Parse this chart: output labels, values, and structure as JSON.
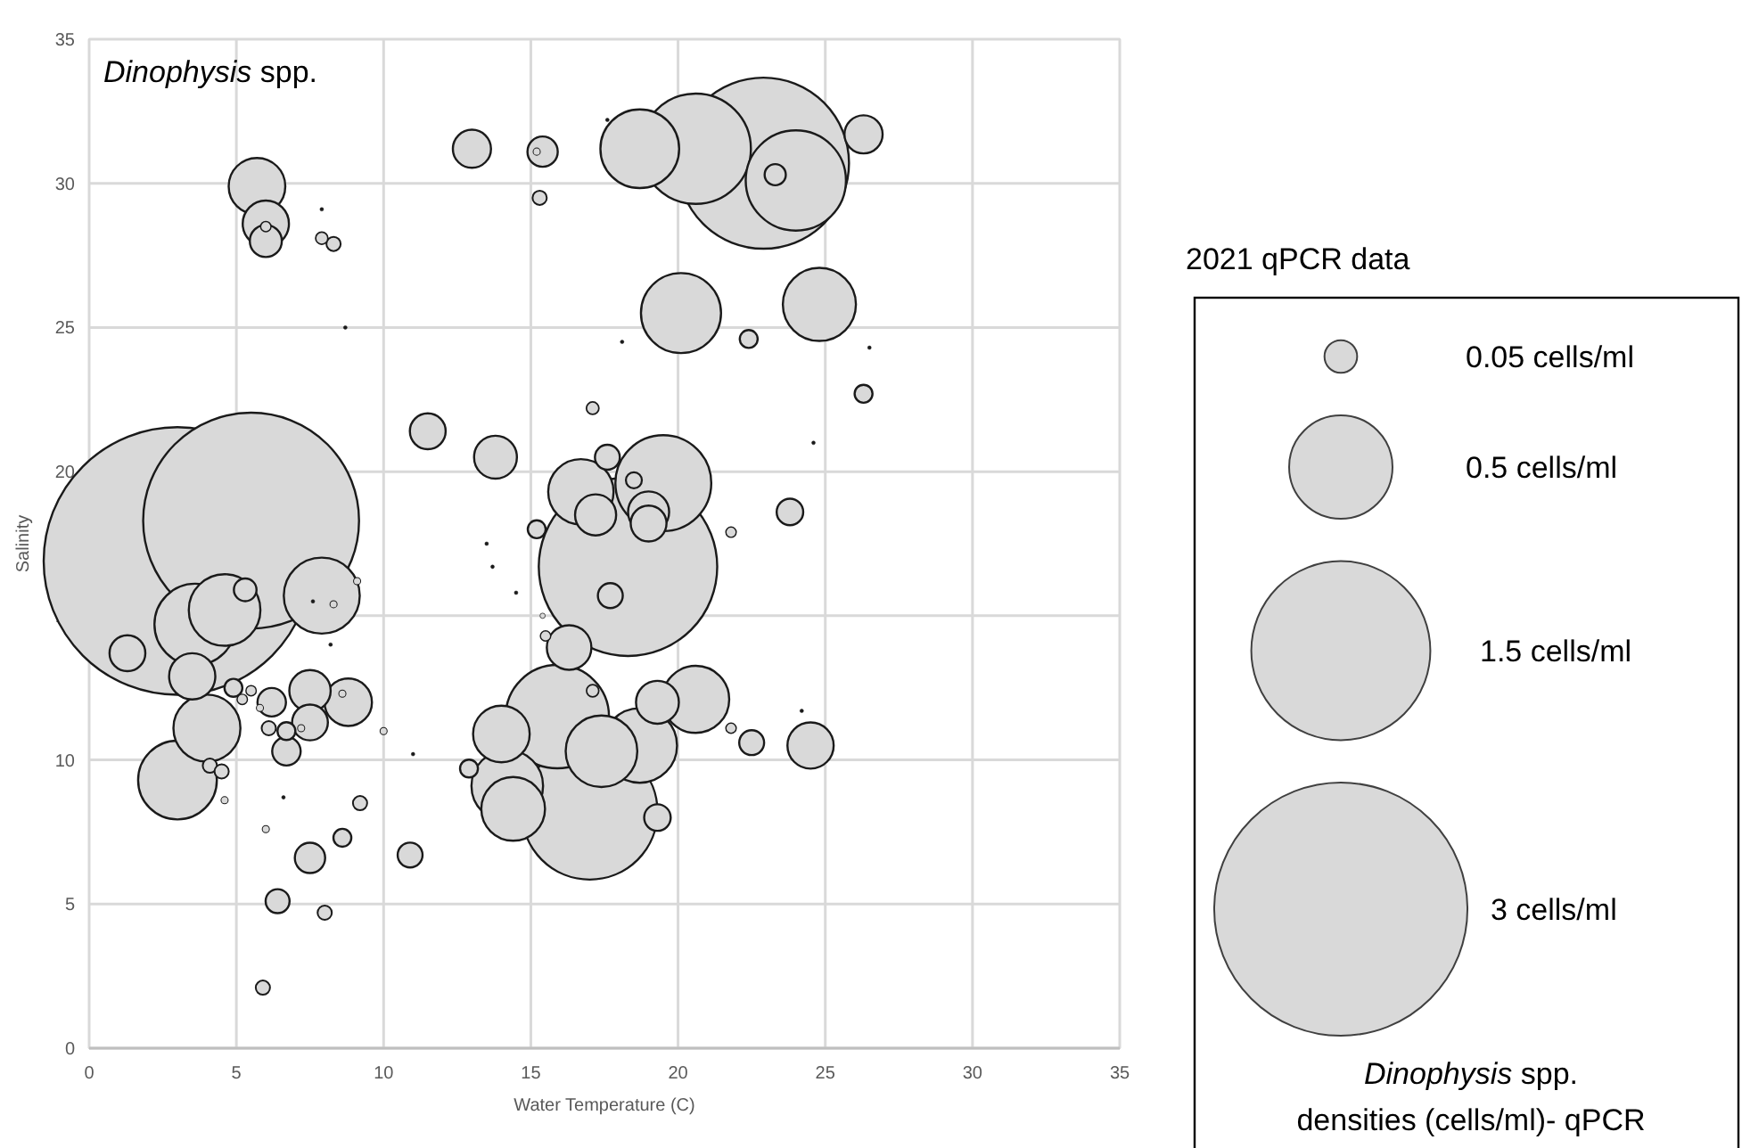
{
  "chart_data": {
    "type": "bubble",
    "title": "Dinophysis spp.",
    "xlabel": "Water Temperature (C)",
    "ylabel": "Salinity",
    "legend_title": "2021 qPCR data",
    "grid": true,
    "annotations": [
      "Dinophysis spp. densities (cells/ml)- qPCR"
    ],
    "xlim": [
      0,
      35
    ],
    "xticks": [
      0,
      5,
      10,
      15,
      20,
      25,
      30,
      35
    ],
    "ylim": [
      0,
      35
    ],
    "yticks": [
      0,
      5,
      10,
      15,
      20,
      25,
      30,
      35
    ],
    "size_legend": [
      {
        "value": 0.05,
        "label": "0.05 cells/ml"
      },
      {
        "value": 0.5,
        "label": "0.5 cells/ml"
      },
      {
        "value": 1.5,
        "label": "1.5 cells/ml"
      },
      {
        "value": 3,
        "label": "3 cells/ml"
      }
    ],
    "series": [
      {
        "color": "#d9d9d9",
        "colors": [
          "#d9d9d9",
          "#d9d9d9",
          "#d9d9d9",
          "#d9d9d9",
          "#d9d9d9",
          "#d9d9d9",
          "#d9d9d9",
          "#d9d9d9",
          "#d9d9d9",
          "#d9d9d9",
          "#d9d9d9",
          "#d9d9d9",
          "#d9d9d9",
          "#1a1a1a",
          "#1a1a1a",
          "#1a1a1a",
          "#d9d9d9",
          "#d9d9d9",
          "#d9d9d9",
          "#d9d9d9",
          "#d9d9d9",
          "#d9d9d9",
          "#d9d9d9",
          "#d9d9d9",
          "#d9d9d9",
          "#d9d9d9",
          "#d9d9d9",
          "#d9d9d9",
          "#d9d9d9",
          "#d9d9d9",
          "#d9d9d9",
          "#d9d9d9",
          "#d9d9d9",
          "#d9d9d9",
          "#d9d9d9",
          "#d9d9d9",
          "#d9d9d9",
          "#d9d9d9",
          "#d9d9d9",
          "#d9d9d9",
          "#d9d9d9",
          "#d9d9d9",
          "#d9d9d9",
          "#d9d9d9",
          "#d9d9d9",
          "#d9d9d9",
          "#d9d9d9",
          "#d9d9d9",
          "#d9d9d9",
          "#d9d9d9",
          "#1a1a1a",
          "#1a1a1a",
          "#1a1a1a",
          "#1a1a1a",
          "#1a1a1a",
          "#1a1a1a",
          "#d9d9d9",
          "#d9d9d9",
          "#d9d9d9",
          "#d9d9d9",
          "#d9d9d9",
          "#d9d9d9",
          "#1a1a1a",
          "#d9d9d9",
          "#d9d9d9",
          "#d9d9d9",
          "#d9d9d9",
          "#d9d9d9",
          "#d9d9d9",
          "#d9d9d9",
          "#d9d9d9",
          "#d9d9d9",
          "#d9d9d9",
          "#d9d9d9",
          "#d9d9d9",
          "#d9d9d9",
          "#d9d9d9",
          "#d9d9d9",
          "#d9d9d9",
          "#d9d9d9",
          "#d9d9d9",
          "#d9d9d9",
          "#d9d9d9",
          "#d9d9d9",
          "#d9d9d9",
          "#d9d9d9",
          "#1a1a1a",
          "#1a1a1a",
          "#d9d9d9",
          "#d9d9d9",
          "#d9d9d9",
          "#d9d9d9",
          "#d9d9d9",
          "#d9d9d9",
          "#d9d9d9",
          "#d9d9d9",
          "#d9d9d9",
          "#d9d9d9",
          "#d9d9d9",
          "#d9d9d9",
          "#d9d9d9",
          "#1a1a1a",
          "#1a1a1a",
          "#d9d9d9"
        ],
        "x": [
          13.0,
          15.4,
          15.2,
          15.3,
          18.7,
          20.6,
          22.9,
          24.0,
          23.3,
          26.3,
          20.1,
          24.8,
          22.4,
          18.1,
          26.5,
          17.6,
          11.5,
          13.8,
          17.1,
          16.7,
          17.6,
          19.5,
          18.5,
          19.0,
          19.0,
          17.2,
          18.3,
          17.7,
          15.2,
          21.8,
          23.8,
          16.3,
          15.5,
          15.4,
          15.9,
          17.1,
          14.0,
          17.4,
          18.7,
          20.6,
          19.3,
          21.8,
          22.5,
          24.5,
          14.2,
          14.4,
          17.0,
          19.3,
          12.9,
          10.9,
          13.5,
          13.7,
          14.5,
          24.6,
          24.2,
          11.0,
          3.0,
          5.5,
          5.3,
          7.9,
          9.1,
          8.3,
          7.6,
          1.3,
          3.5,
          3.6,
          4.6,
          4.0,
          3.0,
          4.1,
          4.5,
          4.6,
          4.9,
          5.5,
          5.2,
          6.2,
          5.8,
          6.1,
          6.7,
          6.7,
          7.5,
          7.5,
          7.2,
          8.8,
          8.6,
          10.0,
          8.2,
          6.6,
          9.2,
          6.0,
          8.6,
          7.5,
          6.4,
          8.0,
          5.9,
          5.7,
          6.0,
          6.0,
          6.0,
          7.9,
          8.3,
          7.9,
          8.7,
          26.3
        ],
        "values": [
          31.2,
          31.1,
          31.1,
          29.5,
          31.2,
          31.2,
          30.7,
          30.1,
          30.3,
          31.7,
          25.5,
          25.8,
          24.6,
          24.5,
          24.3,
          32.2,
          21.4,
          20.5,
          22.2,
          19.3,
          20.5,
          19.6,
          19.7,
          18.6,
          18.2,
          18.5,
          16.7,
          15.7,
          18.0,
          17.9,
          18.6,
          13.9,
          14.3,
          15.0,
          11.5,
          12.4,
          10.9,
          10.3,
          10.5,
          12.1,
          12.0,
          11.1,
          10.6,
          10.5,
          9.1,
          8.3,
          8.2,
          8.0,
          9.7,
          6.7,
          17.5,
          16.7,
          15.8,
          21.0,
          11.7,
          10.2,
          16.9,
          18.3,
          15.9,
          15.7,
          16.2,
          15.4,
          15.5,
          13.7,
          12.9,
          14.7,
          15.2,
          11.1,
          9.3,
          9.8,
          9.6,
          8.6,
          12.5,
          12.4,
          12.1,
          12.0,
          11.8,
          11.1,
          10.3,
          11.0,
          12.4,
          11.3,
          11.1,
          12.0,
          12.3,
          11.0,
          14.0,
          8.7,
          8.5,
          7.6,
          7.3,
          6.6,
          5.1,
          4.7,
          2.1,
          29.9,
          28.6,
          28.0,
          28.5,
          28.1,
          27.9,
          29.1,
          25.0,
          22.7
        ],
        "sizes": [
          0.068,
          0.043,
          0.0024,
          0.0095,
          0.29,
          0.57,
          1.37,
          0.47,
          0.021,
          0.068,
          0.3,
          0.25,
          0.015,
          0.0006,
          0.0006,
          0.0006,
          0.06,
          0.086,
          0.0073,
          0.2,
          0.029,
          0.43,
          0.012,
          0.079,
          0.06,
          0.079,
          1.49,
          0.029,
          0.015,
          0.005,
          0.033,
          0.093,
          0.005,
          0.0013,
          0.5,
          0.007,
          0.15,
          0.24,
          0.26,
          0.21,
          0.086,
          0.005,
          0.029,
          0.1,
          0.24,
          0.19,
          0.86,
          0.033,
          0.015,
          0.029,
          0.0006,
          0.0006,
          0.0006,
          0.0006,
          0.0006,
          0.0006,
          3.35,
          2.18,
          0.024,
          0.27,
          0.0024,
          0.0024,
          0.0006,
          0.06,
          0.1,
          0.31,
          0.24,
          0.21,
          0.29,
          0.0095,
          0.0095,
          0.0024,
          0.015,
          0.005,
          0.005,
          0.038,
          0.0024,
          0.0095,
          0.038,
          0.015,
          0.08,
          0.06,
          0.0024,
          0.105,
          0.0024,
          0.0024,
          0.0006,
          0.0006,
          0.0095,
          0.0024,
          0.015,
          0.043,
          0.027,
          0.0095,
          0.0095,
          0.15,
          0.1,
          0.048,
          0.005,
          0.007,
          0.0095,
          0.0006,
          0.0006,
          0.015
        ]
      }
    ]
  }
}
